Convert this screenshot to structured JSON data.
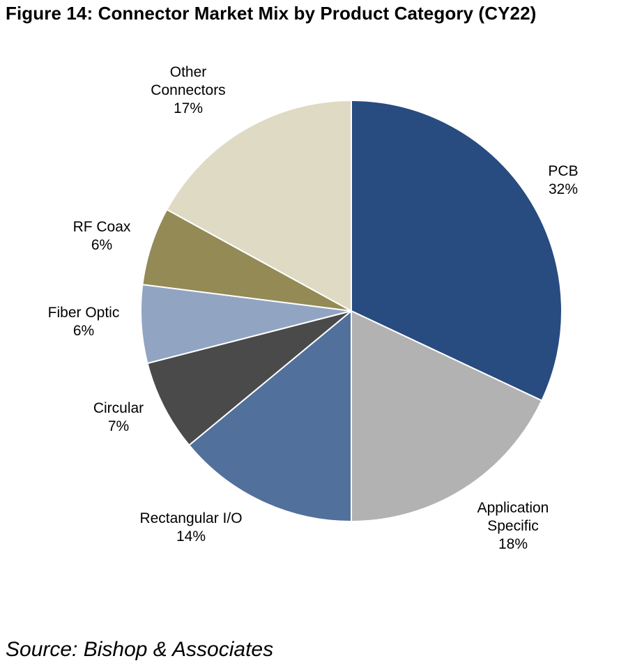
{
  "chart_data": {
    "type": "pie",
    "title": "Figure 14: Connector Market Mix by Product Category (CY22)",
    "source": "Source: Bishop & Associates",
    "slices": [
      {
        "label": [
          "PCB"
        ],
        "pct_label": "32%",
        "value": 32,
        "color": "#284b80"
      },
      {
        "label": [
          "Application",
          "Specific"
        ],
        "pct_label": "18%",
        "value": 18,
        "color": "#b2b2b2"
      },
      {
        "label": [
          "Rectangular I/O"
        ],
        "pct_label": "14%",
        "value": 14,
        "color": "#51709b"
      },
      {
        "label": [
          "Circular"
        ],
        "pct_label": "7%",
        "value": 7,
        "color": "#4a4a4a"
      },
      {
        "label": [
          "Fiber Optic"
        ],
        "pct_label": "6%",
        "value": 6,
        "color": "#91a5c2"
      },
      {
        "label": [
          "RF Coax"
        ],
        "pct_label": "6%",
        "value": 6,
        "color": "#938a55"
      },
      {
        "label": [
          "Other",
          "Connectors"
        ],
        "pct_label": "17%",
        "value": 17,
        "color": "#dedac4"
      }
    ],
    "start": "12 o'clock",
    "direction": "clockwise"
  }
}
